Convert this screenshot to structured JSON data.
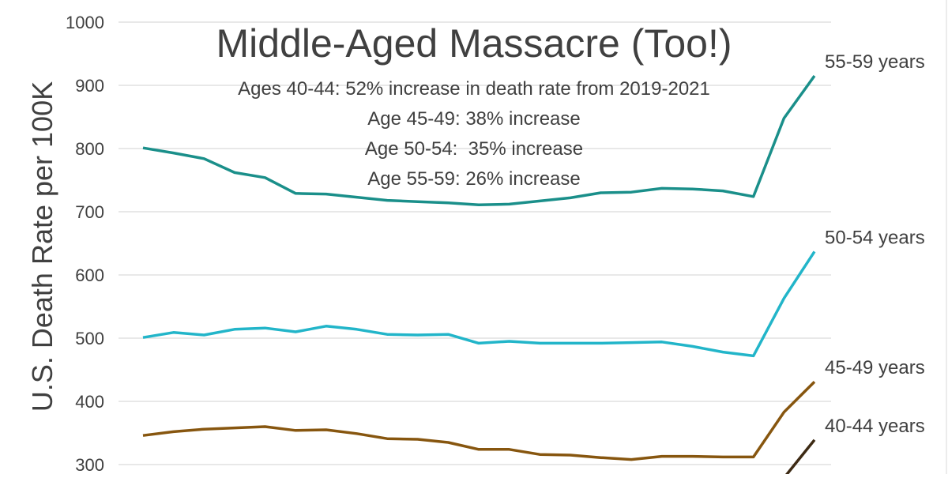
{
  "chart_data": {
    "type": "line",
    "title": "Middle-Aged Massacre (Too!)",
    "annotations": [
      "Ages 40-44: 52% increase in death rate from 2019-2021",
      "Age 45-49: 38% increase",
      "Age 50-54:  35% increase",
      "Age 55-59: 26% increase"
    ],
    "xlabel": "",
    "ylabel": "U.S. Death Rate per 100K",
    "ylim": [
      300,
      1000
    ],
    "yticks": [
      300,
      400,
      500,
      600,
      700,
      800,
      900,
      1000
    ],
    "grid": true,
    "legend": "direct labels at line ends (right)",
    "series": [
      {
        "name": "55-59 years",
        "color": "#1a8f8a",
        "values": [
          801,
          793,
          784,
          762,
          754,
          729,
          728,
          723,
          718,
          716,
          714,
          711,
          712,
          717,
          722,
          730,
          731,
          737,
          736,
          733,
          724,
          848,
          915
        ]
      },
      {
        "name": "50-54 years",
        "color": "#22b5c9",
        "values": [
          501,
          509,
          505,
          514,
          516,
          510,
          519,
          514,
          506,
          505,
          506,
          492,
          495,
          492,
          492,
          492,
          493,
          494,
          487,
          478,
          472,
          563,
          637
        ]
      },
      {
        "name": "45-49 years",
        "color": "#87560f",
        "values": [
          346,
          352,
          356,
          358,
          360,
          354,
          355,
          349,
          341,
          340,
          335,
          324,
          324,
          316,
          315,
          311,
          308,
          313,
          313,
          312,
          312,
          383,
          431
        ]
      },
      {
        "name": "40-44 years",
        "color": "#3d2a14",
        "values": [
          null,
          null,
          null,
          null,
          null,
          null,
          null,
          null,
          null,
          null,
          null,
          null,
          null,
          null,
          null,
          null,
          null,
          null,
          null,
          null,
          null,
          279,
          339
        ]
      }
    ]
  }
}
